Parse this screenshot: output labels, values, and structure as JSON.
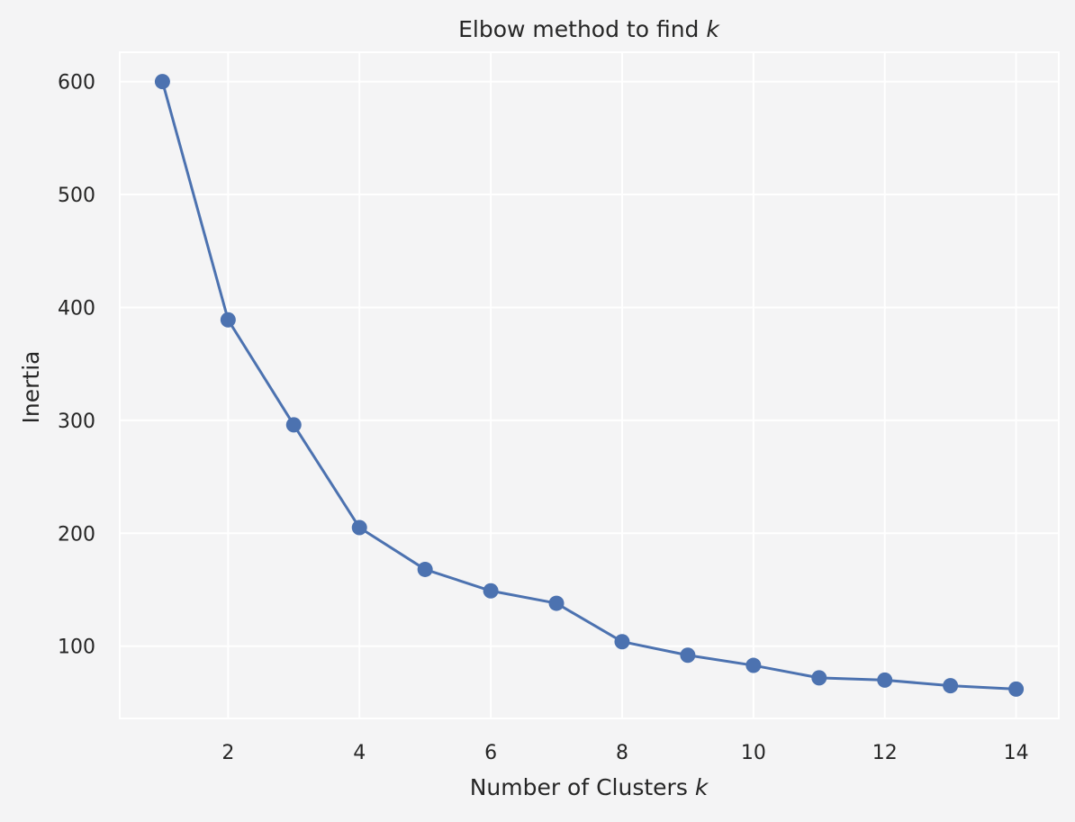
{
  "chart_data": {
    "type": "line",
    "title": "Elbow method to find",
    "title_var": "k",
    "xlabel": "Number of Clusters",
    "xlabel_var": "k",
    "ylabel": "Inertia",
    "x": [
      1,
      2,
      3,
      4,
      5,
      6,
      7,
      8,
      9,
      10,
      11,
      12,
      13,
      14
    ],
    "series": [
      {
        "values": [
          600,
          389,
          296,
          205,
          168,
          149,
          138,
          104,
          92,
          83,
          72,
          70,
          65,
          62
        ],
        "color": "#4c72b0",
        "marker": "circle"
      }
    ],
    "xlim": [
      0.35,
      14.65
    ],
    "ylim": [
      36,
      626
    ],
    "xticks": [
      2,
      4,
      6,
      8,
      10,
      12,
      14
    ],
    "yticks": [
      100,
      200,
      300,
      400,
      500,
      600
    ],
    "grid": true,
    "colors": {
      "background": "#f4f4f5",
      "grid": "#ffffff",
      "text": "#262626"
    }
  }
}
